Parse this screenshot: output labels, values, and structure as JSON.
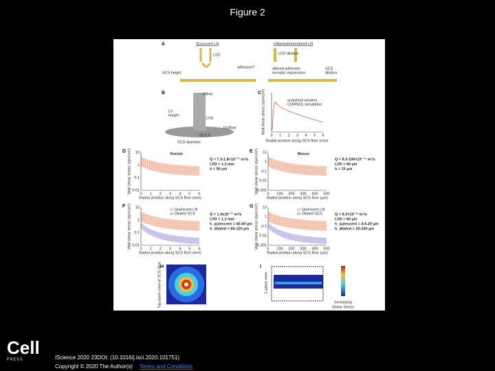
{
  "header": {
    "title": "Figure 2"
  },
  "figure": {
    "a": {
      "letter": "A",
      "left_title": "Quiescent LN",
      "right_title": "Inflamed/remodeled LN",
      "lvd": "LVD",
      "lvd_dilation": "LVD dilation",
      "scs_height": "SCS height",
      "adhesion": "adhesion?",
      "altered": "altered adhesion",
      "receptor": "receptor expression",
      "scs": "SCS",
      "dilation": "dilation"
    },
    "b": {
      "letter": "B",
      "inflow": "Inflow",
      "lv": "LV",
      "height": "height",
      "lvd": "LVD",
      "outflow": "Outflow",
      "scs_h": "SCS h",
      "scs_diameter": "SCS diameter"
    },
    "c": {
      "letter": "C",
      "legend": [
        "analytical solution",
        "COMSOL simulation"
      ],
      "y_label": "Wall shear stress (dyn/cm²)",
      "x_label": "Radial position along SCS floor (mm)",
      "xticks": [
        "0",
        "1",
        "2",
        "3",
        "4",
        "5",
        "6"
      ]
    },
    "d": {
      "letter": "D",
      "name": "Human",
      "lines": [
        "Q = 7.3-1.8×10⁻¹¹ m³/s",
        "LVD = 1.2 mm",
        "h = 50 µm"
      ],
      "yticks": [
        "10",
        "1",
        "0.1",
        "0.01"
      ],
      "xticks": [
        "0",
        "1",
        "2",
        "3",
        "4",
        "5",
        "6"
      ],
      "x_label": "Radial position along SCS floor (mm)",
      "y_label": "Wall shear stress (dyn/cm²)"
    },
    "e": {
      "letter": "E",
      "name": "Mouse",
      "lines": [
        "Q = 8.3-100×10⁻¹⁴ m³/s",
        "LVD = 60 µm",
        "h = 15 µm"
      ],
      "yticks": [
        "10",
        "1",
        "0.1",
        "0.01",
        "0.001"
      ],
      "xticks": [
        "0",
        "100",
        "200",
        "300",
        "400",
        "500"
      ],
      "x_label": "Radial position along SCS floor (µm)",
      "y_label": "Wall shear stress (dyn/cm²)"
    },
    "f": {
      "letter": "F",
      "legend": [
        "Quiescent LN",
        "Dilated SCS"
      ],
      "lines": [
        "Q = 1.4±10⁻¹¹ m³/s",
        "LVD = 1.2 mm",
        "h_quiescent = 40-60 µm",
        "h_dilated = 60-120 µm"
      ],
      "yticks": [
        "10",
        "1",
        "0.1",
        "0.01"
      ],
      "xticks": [
        "0",
        "1",
        "2",
        "3",
        "4",
        "5",
        "6"
      ],
      "x_label": "Radial position along SCS floor (mm)",
      "y_label": "Wall shear stress (dyn/cm²)"
    },
    "g": {
      "letter": "G",
      "legend": [
        "Quiescent LN",
        "Dilated SCS"
      ],
      "lines": [
        "Q = 8.3×10⁻¹² m³/s",
        "LVD = 60 µm",
        "h_quiescent = 4.5-20 µm",
        "h_dilated = 20-100 µm"
      ],
      "yticks": [
        "10",
        "1",
        "0.1",
        "0.01",
        "0.001"
      ],
      "xticks": [
        "0",
        "100",
        "200",
        "300",
        "400",
        "500"
      ],
      "x_label": "Radial position along SCS floor (µm)",
      "y_label": "Wall shear stress (dyn/cm²)"
    },
    "h": {
      "letter": "H",
      "label": "Top-down view of SCS floor"
    },
    "i": {
      "letter": "I",
      "label": "Z-plane view",
      "bar_label": [
        "Increasing",
        "Shear Stress"
      ]
    }
  },
  "footer": {
    "logo": "Cell",
    "logo_sub": "P R E S S",
    "citation": "iScience 2020 23DOI: (10.1016/j.isci.2020.101751)",
    "copyright": "Copyright © 2020 The Author(s)",
    "license": "Terms and Conditions"
  }
}
